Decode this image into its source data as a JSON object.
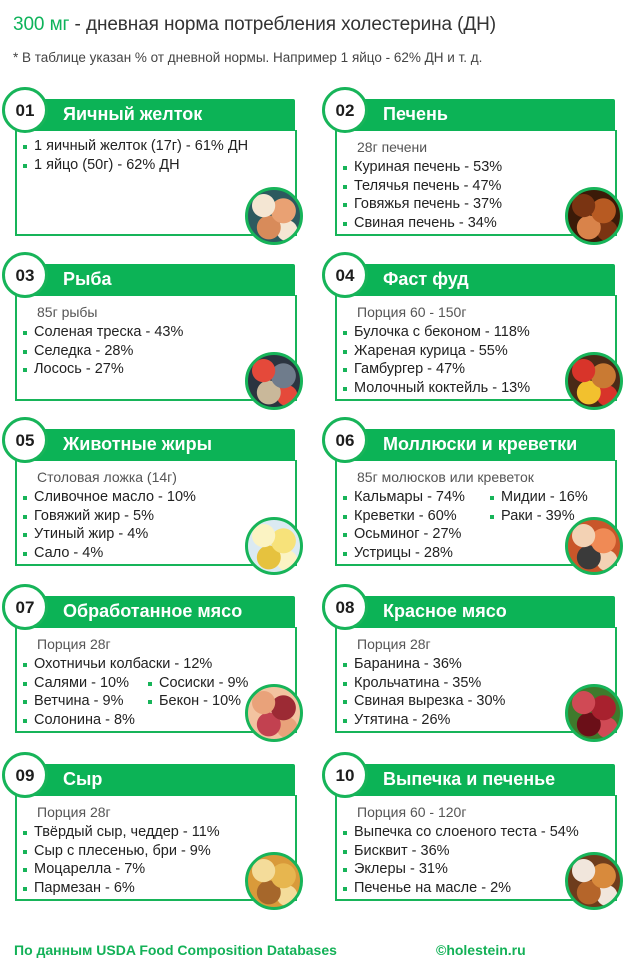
{
  "header": {
    "title_accent": "300 мг",
    "title_rest": " - дневная норма потребления холестерина (ДН)",
    "note": "* В таблице указан % от дневной нормы. Например 1 яйцо - 62% ДН и т. д."
  },
  "accent_color": "#0cb356",
  "cards": [
    {
      "number": "01",
      "title": "Яичный желток",
      "subtitle": "",
      "items": [
        "1 яичный желток (17г) - 61% ДН",
        "1 яйцо (50г) - 62% ДН"
      ],
      "items_col2": [],
      "image": "eggs-photo",
      "photo_colors": [
        "#e9a173",
        "#f4e6d3",
        "#d88b5a",
        "#2c5a5f"
      ]
    },
    {
      "number": "02",
      "title": "Печень",
      "subtitle": "28г печени",
      "items": [
        "Куриная печень - 53%",
        "Телячья печень - 47%",
        "Говяжья печень - 37%",
        "Свиная печень - 34%"
      ],
      "items_col2": [],
      "image": "liver-photo",
      "photo_colors": [
        "#b75a22",
        "#7a3412",
        "#d9834a",
        "#3b1a08"
      ]
    },
    {
      "number": "03",
      "title": "Рыба",
      "subtitle": "85г рыбы",
      "items": [
        "Соленая треска - 43%",
        "Селедка - 28%",
        "Лосось - 27%"
      ],
      "items_col2": [],
      "image": "fish-photo",
      "photo_colors": [
        "#6f7c8c",
        "#e5493a",
        "#c9b89a",
        "#2b3440"
      ]
    },
    {
      "number": "04",
      "title": "Фаст фуд",
      "subtitle": "Порция 60 - 150г",
      "items": [
        "Булочка с беконом - 118%",
        "Жареная курица - 55%",
        "Гамбургер - 47%",
        "Молочный коктейль - 13%"
      ],
      "items_col2": [],
      "image": "burger-photo",
      "photo_colors": [
        "#c97a33",
        "#d8342a",
        "#f2c12e",
        "#4a2a17"
      ]
    },
    {
      "number": "05",
      "title": "Животные жиры",
      "subtitle": "Столовая ложка (14г)",
      "items": [
        "Сливочное масло - 10%",
        "Говяжий жир - 5%",
        "Утиный жир - 4%",
        "Сало - 4%"
      ],
      "items_col2": [],
      "image": "butter-photo",
      "photo_colors": [
        "#f7e27a",
        "#fbf3c3",
        "#e6c23e",
        "#dbeaf2"
      ]
    },
    {
      "number": "06",
      "title": "Моллюски и креветки",
      "subtitle": "85г молюсков или креветок",
      "items": [
        "Кальмары - 74%",
        "Креветки - 60%",
        "Осьминог - 27%",
        "Устрицы - 28%"
      ],
      "items_col2": [
        "Мидии - 16%",
        "Раки - 39%"
      ],
      "image": "seafood-photo",
      "photo_colors": [
        "#f08a55",
        "#f3d2b4",
        "#3a3a3a",
        "#c9562a"
      ]
    },
    {
      "number": "07",
      "title": "Обработанное мясо",
      "subtitle": "Порция 28г",
      "items": [
        "Охотничьи колбаски - 12%",
        "Салями - 10%",
        "Ветчина - 9%",
        "Солонина - 8%"
      ],
      "items_col2": [
        "Сосиски - 9%",
        "Бекон - 10%"
      ],
      "image": "sausages-photo",
      "photo_colors": [
        "#9c2a34",
        "#e9a27a",
        "#c24150",
        "#f3c3a0"
      ]
    },
    {
      "number": "08",
      "title": "Красное мясо",
      "subtitle": "Порция 28г",
      "items": [
        "Баранина - 36%",
        "Крольчатина - 35%",
        "Свиная вырезка - 30%",
        "Утятина - 26%"
      ],
      "items_col2": [],
      "image": "meat-photo",
      "photo_colors": [
        "#a8212e",
        "#d04a55",
        "#6b0f18",
        "#3f7a2c"
      ]
    },
    {
      "number": "09",
      "title": "Сыр",
      "subtitle": "Порция 28г",
      "items": [
        "Твёрдый сыр, чеддер - 11%",
        "Сыр с плесенью, бри - 9%",
        "Моцарелла - 7%",
        "Пармезан - 6%"
      ],
      "items_col2": [],
      "image": "cheese-photo",
      "photo_colors": [
        "#e7b64f",
        "#f4dc9a",
        "#a6672b",
        "#d99a3a"
      ]
    },
    {
      "number": "10",
      "title": "Выпечка и печенье",
      "subtitle": "Порция 60 - 120г",
      "items": [
        "Выпечка со слоеного теста - 54%",
        "Бисквит - 36%",
        "Эклеры - 31%",
        "Печенье на масле - 2%"
      ],
      "items_col2": [],
      "image": "pastry-photo",
      "photo_colors": [
        "#d88a3c",
        "#f1e6dc",
        "#b5652a",
        "#6e3c1c"
      ]
    }
  ],
  "footer": {
    "source": "По данным USDA Food Composition Databases",
    "copyright": "©holestein.ru"
  }
}
